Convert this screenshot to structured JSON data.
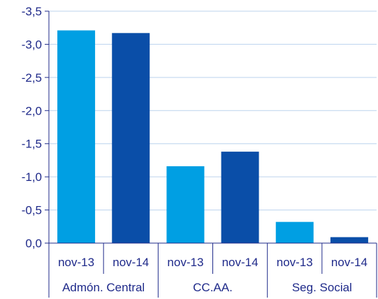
{
  "chart_data": {
    "type": "bar",
    "groups": [
      "Admón. Central",
      "CC.AA.",
      "Seg. Social"
    ],
    "categories": [
      "nov-13",
      "nov-14",
      "nov-13",
      "nov-14",
      "nov-13",
      "nov-14"
    ],
    "values": [
      -3.21,
      -3.17,
      -1.16,
      -1.38,
      -0.32,
      -0.09
    ],
    "bar_colors": [
      "#009fe3",
      "#0a4ea8",
      "#009fe3",
      "#0a4ea8",
      "#009fe3",
      "#0a4ea8"
    ],
    "y_ticks": [
      "0,0",
      "-0,5",
      "-1,0",
      "-1,5",
      "-2,0",
      "-2,5",
      "-3,0",
      "-3,5"
    ],
    "ylim": [
      0,
      -3.5
    ],
    "y_inverted": true,
    "grid": true,
    "title": "",
    "xlabel": "",
    "ylabel": ""
  },
  "colors": {
    "text": "#1f2a8a",
    "axis": "#1f2a8a",
    "grid": "#bcd3ee"
  }
}
